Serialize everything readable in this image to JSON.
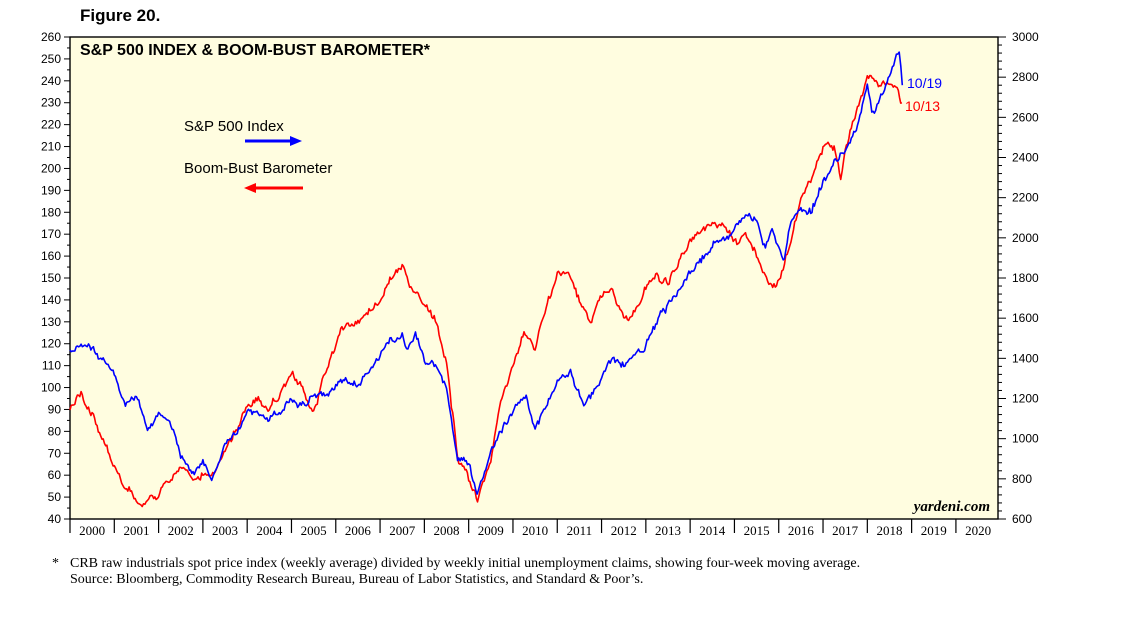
{
  "figure_label": "Figure 20.",
  "footnote": {
    "marker": "*",
    "text": "CRB raw industrials spot price index (weekly average) divided by weekly initial unemployment claims, showing four-week moving average.",
    "source": "Source: Bloomberg, Commodity Research Bureau, Bureau of Labor Statistics, and Standard & Poor’s."
  },
  "chart_data": {
    "type": "line",
    "title": "S&P 500 INDEX & BOOM-BUST BAROMETER*",
    "watermark": "yardeni.com",
    "background_color": "#fffde0",
    "grid": false,
    "x_axis": {
      "range": [
        2000.0,
        2020.95
      ],
      "tick_labels": [
        "2000",
        "2001",
        "2002",
        "2003",
        "2004",
        "2005",
        "2006",
        "2007",
        "2008",
        "2009",
        "2010",
        "2011",
        "2012",
        "2013",
        "2014",
        "2015",
        "2016",
        "2017",
        "2018",
        "2019",
        "2020"
      ]
    },
    "y_left": {
      "range": [
        40,
        260
      ],
      "tick_labels": [
        "40",
        "50",
        "60",
        "70",
        "80",
        "90",
        "100",
        "110",
        "120",
        "130",
        "140",
        "150",
        "160",
        "170",
        "180",
        "190",
        "200",
        "210",
        "220",
        "230",
        "240",
        "250",
        "260"
      ]
    },
    "y_right": {
      "range": [
        600,
        3000
      ],
      "tick_labels": [
        "600",
        "800",
        "1000",
        "1200",
        "1400",
        "1600",
        "1800",
        "2000",
        "2200",
        "2400",
        "2600",
        "2800",
        "3000"
      ]
    },
    "legend": [
      {
        "label": "S&P 500 Index",
        "color": "#0000ff",
        "arrow": "right"
      },
      {
        "label": "Boom-Bust Barometer",
        "color": "#ff0000",
        "arrow": "left"
      }
    ],
    "series": [
      {
        "name": "S&P 500 Index",
        "axis": "right",
        "color": "#0000ff",
        "end_label": "10/19",
        "points": [
          [
            2000.0,
            1420
          ],
          [
            2000.25,
            1480
          ],
          [
            2000.5,
            1440
          ],
          [
            2000.75,
            1400
          ],
          [
            2001.0,
            1330
          ],
          [
            2001.25,
            1180
          ],
          [
            2001.5,
            1220
          ],
          [
            2001.75,
            1060
          ],
          [
            2002.0,
            1140
          ],
          [
            2002.25,
            1080
          ],
          [
            2002.5,
            900
          ],
          [
            2002.75,
            820
          ],
          [
            2003.0,
            880
          ],
          [
            2003.2,
            820
          ],
          [
            2003.5,
            990
          ],
          [
            2003.75,
            1030
          ],
          [
            2004.0,
            1130
          ],
          [
            2004.25,
            1120
          ],
          [
            2004.5,
            1100
          ],
          [
            2004.75,
            1150
          ],
          [
            2005.0,
            1200
          ],
          [
            2005.25,
            1180
          ],
          [
            2005.5,
            1230
          ],
          [
            2005.75,
            1230
          ],
          [
            2006.0,
            1280
          ],
          [
            2006.25,
            1300
          ],
          [
            2006.5,
            1260
          ],
          [
            2006.75,
            1360
          ],
          [
            2007.0,
            1430
          ],
          [
            2007.25,
            1480
          ],
          [
            2007.5,
            1520
          ],
          [
            2007.6,
            1460
          ],
          [
            2007.8,
            1540
          ],
          [
            2008.0,
            1400
          ],
          [
            2008.25,
            1370
          ],
          [
            2008.5,
            1270
          ],
          [
            2008.75,
            900
          ],
          [
            2009.0,
            880
          ],
          [
            2009.19,
            700
          ],
          [
            2009.5,
            950
          ],
          [
            2009.75,
            1050
          ],
          [
            2010.0,
            1120
          ],
          [
            2010.3,
            1200
          ],
          [
            2010.5,
            1050
          ],
          [
            2010.75,
            1160
          ],
          [
            2011.0,
            1280
          ],
          [
            2011.3,
            1350
          ],
          [
            2011.6,
            1150
          ],
          [
            2011.75,
            1200
          ],
          [
            2012.0,
            1300
          ],
          [
            2012.25,
            1400
          ],
          [
            2012.5,
            1360
          ],
          [
            2012.75,
            1420
          ],
          [
            2013.0,
            1480
          ],
          [
            2013.25,
            1580
          ],
          [
            2013.5,
            1660
          ],
          [
            2013.75,
            1720
          ],
          [
            2014.0,
            1820
          ],
          [
            2014.25,
            1880
          ],
          [
            2014.5,
            1960
          ],
          [
            2014.75,
            1980
          ],
          [
            2015.0,
            2050
          ],
          [
            2015.25,
            2100
          ],
          [
            2015.5,
            2090
          ],
          [
            2015.7,
            1950
          ],
          [
            2015.85,
            2050
          ],
          [
            2016.0,
            1940
          ],
          [
            2016.1,
            1880
          ],
          [
            2016.25,
            2060
          ],
          [
            2016.5,
            2160
          ],
          [
            2016.75,
            2140
          ],
          [
            2017.0,
            2280
          ],
          [
            2017.25,
            2360
          ],
          [
            2017.5,
            2440
          ],
          [
            2017.75,
            2540
          ],
          [
            2018.0,
            2780
          ],
          [
            2018.1,
            2630
          ],
          [
            2018.25,
            2680
          ],
          [
            2018.5,
            2800
          ],
          [
            2018.72,
            2920
          ],
          [
            2018.79,
            2760
          ]
        ]
      },
      {
        "name": "Boom-Bust Barometer",
        "axis": "left",
        "color": "#ff0000",
        "end_label": "10/13",
        "points": [
          [
            2000.0,
            90
          ],
          [
            2000.25,
            98
          ],
          [
            2000.5,
            88
          ],
          [
            2000.75,
            76
          ],
          [
            2001.0,
            65
          ],
          [
            2001.25,
            55
          ],
          [
            2001.5,
            50
          ],
          [
            2001.6,
            46
          ],
          [
            2001.75,
            50
          ],
          [
            2002.0,
            52
          ],
          [
            2002.25,
            57
          ],
          [
            2002.5,
            64
          ],
          [
            2002.75,
            60
          ],
          [
            2003.0,
            62
          ],
          [
            2003.25,
            62
          ],
          [
            2003.5,
            72
          ],
          [
            2003.75,
            82
          ],
          [
            2004.0,
            92
          ],
          [
            2004.25,
            96
          ],
          [
            2004.5,
            88
          ],
          [
            2004.75,
            98
          ],
          [
            2005.0,
            106
          ],
          [
            2005.25,
            98
          ],
          [
            2005.5,
            88
          ],
          [
            2005.75,
            106
          ],
          [
            2006.0,
            118
          ],
          [
            2006.25,
            130
          ],
          [
            2006.5,
            128
          ],
          [
            2006.75,
            135
          ],
          [
            2007.0,
            140
          ],
          [
            2007.25,
            150
          ],
          [
            2007.5,
            155
          ],
          [
            2007.75,
            145
          ],
          [
            2008.0,
            140
          ],
          [
            2008.25,
            132
          ],
          [
            2008.5,
            112
          ],
          [
            2008.75,
            70
          ],
          [
            2009.0,
            58
          ],
          [
            2009.2,
            50
          ],
          [
            2009.5,
            68
          ],
          [
            2009.75,
            95
          ],
          [
            2010.0,
            110
          ],
          [
            2010.25,
            125
          ],
          [
            2010.5,
            118
          ],
          [
            2010.75,
            138
          ],
          [
            2011.0,
            150
          ],
          [
            2011.25,
            152
          ],
          [
            2011.5,
            140
          ],
          [
            2011.75,
            130
          ],
          [
            2012.0,
            140
          ],
          [
            2012.25,
            145
          ],
          [
            2012.5,
            130
          ],
          [
            2012.75,
            135
          ],
          [
            2013.0,
            145
          ],
          [
            2013.25,
            150
          ],
          [
            2013.5,
            148
          ],
          [
            2013.75,
            158
          ],
          [
            2014.0,
            168
          ],
          [
            2014.25,
            172
          ],
          [
            2014.5,
            176
          ],
          [
            2014.75,
            172
          ],
          [
            2015.0,
            165
          ],
          [
            2015.25,
            168
          ],
          [
            2015.5,
            160
          ],
          [
            2015.75,
            150
          ],
          [
            2015.95,
            146
          ],
          [
            2016.25,
            165
          ],
          [
            2016.5,
            185
          ],
          [
            2016.75,
            195
          ],
          [
            2017.0,
            210
          ],
          [
            2017.25,
            212
          ],
          [
            2017.4,
            195
          ],
          [
            2017.5,
            208
          ],
          [
            2017.75,
            225
          ],
          [
            2018.0,
            240
          ],
          [
            2018.25,
            238
          ],
          [
            2018.5,
            240
          ],
          [
            2018.7,
            236
          ],
          [
            2018.78,
            230
          ]
        ]
      }
    ]
  }
}
